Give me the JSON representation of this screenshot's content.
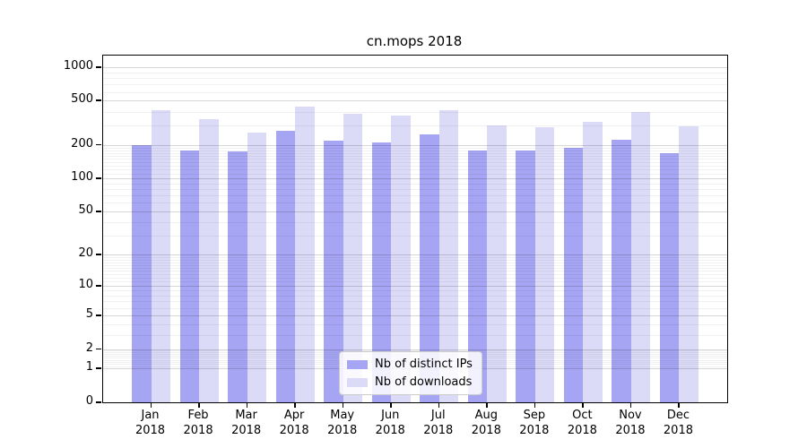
{
  "title": "cn.mops 2018",
  "legend": {
    "items": [
      {
        "label": "Nb of distinct IPs",
        "color": "#a5a5f3"
      },
      {
        "label": "Nb of downloads",
        "color": "#dbdbf8"
      }
    ]
  },
  "chart_data": {
    "type": "bar",
    "title": "cn.mops 2018",
    "categories": [
      "Jan",
      "Feb",
      "Mar",
      "Apr",
      "May",
      "Jun",
      "Jul",
      "Aug",
      "Sep",
      "Oct",
      "Nov",
      "Dec"
    ],
    "category_year": "2018",
    "series": [
      {
        "name": "Nb of distinct IPs",
        "color": "#a5a5f3",
        "values": [
          200,
          180,
          175,
          270,
          220,
          210,
          250,
          180,
          180,
          190,
          225,
          170
        ]
      },
      {
        "name": "Nb of downloads",
        "color": "#dbdbf8",
        "values": [
          410,
          345,
          260,
          440,
          385,
          365,
          410,
          300,
          290,
          325,
          400,
          295
        ]
      }
    ],
    "yscale": "log1p",
    "yticks": [
      0,
      1,
      2,
      5,
      10,
      20,
      50,
      100,
      200,
      500,
      1000
    ],
    "ylim": [
      0,
      1200
    ],
    "grid": "on",
    "legend_position": "bottom-center",
    "axis_color": "#000000",
    "background_color": "#ffffff"
  }
}
